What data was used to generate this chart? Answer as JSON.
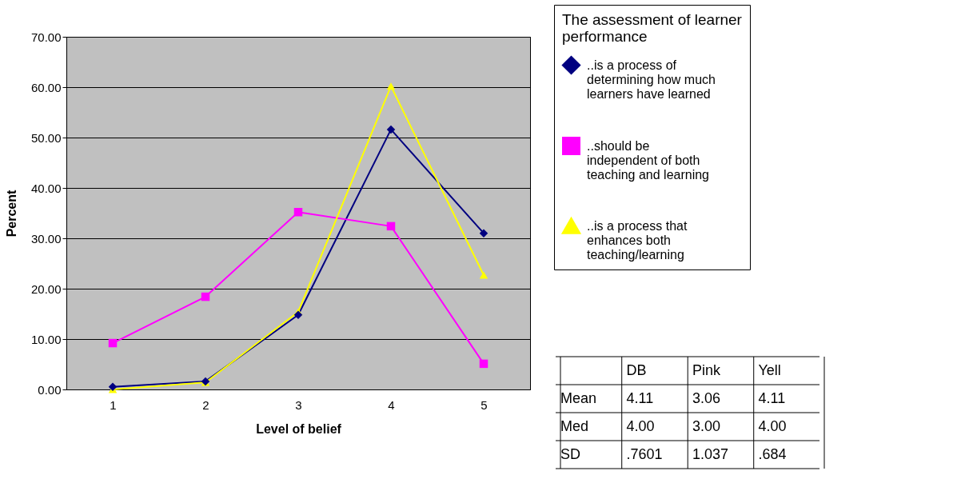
{
  "chart_data": {
    "type": "line",
    "xlabel": "Level of belief",
    "ylabel": "Percent",
    "legend_title": "The assessment of learner performance",
    "legend": "right",
    "categories": [
      "1",
      "2",
      "3",
      "4",
      "5"
    ],
    "series": [
      {
        "name": "..is a process of determining how much learners have learned",
        "color": "#000080",
        "marker": "diamond",
        "values": [
          0.5,
          1.6,
          14.8,
          51.6,
          31.0
        ]
      },
      {
        "name": "..should be independent of both teaching and learning",
        "color": "#ff00ff",
        "marker": "square",
        "values": [
          9.2,
          18.4,
          35.2,
          32.4,
          5.1
        ]
      },
      {
        "name": "..is a process that enhances both teaching/learning",
        "color": "#ffff00",
        "marker": "triangle",
        "values": [
          0.0,
          1.4,
          15.4,
          60.2,
          22.7
        ]
      }
    ],
    "ylim": [
      0,
      70
    ],
    "yticks": [
      {
        "value": 0,
        "label": "0.00"
      },
      {
        "value": 10,
        "label": "10.00"
      },
      {
        "value": 20,
        "label": "20.00"
      },
      {
        "value": 30,
        "label": "30.00"
      },
      {
        "value": 40,
        "label": "40.00"
      },
      {
        "value": 50,
        "label": "50.00"
      },
      {
        "value": 60,
        "label": "60.00"
      },
      {
        "value": 70,
        "label": "70.00"
      }
    ],
    "grid": "y",
    "annotations": [
      "DB",
      "Pink",
      "Yell",
      "Mean",
      "4.11",
      "3.06",
      "4.11",
      "Med",
      "4.00",
      "3.00",
      "4.00",
      "SD",
      ".7601",
      "1.037",
      ".684"
    ]
  }
}
